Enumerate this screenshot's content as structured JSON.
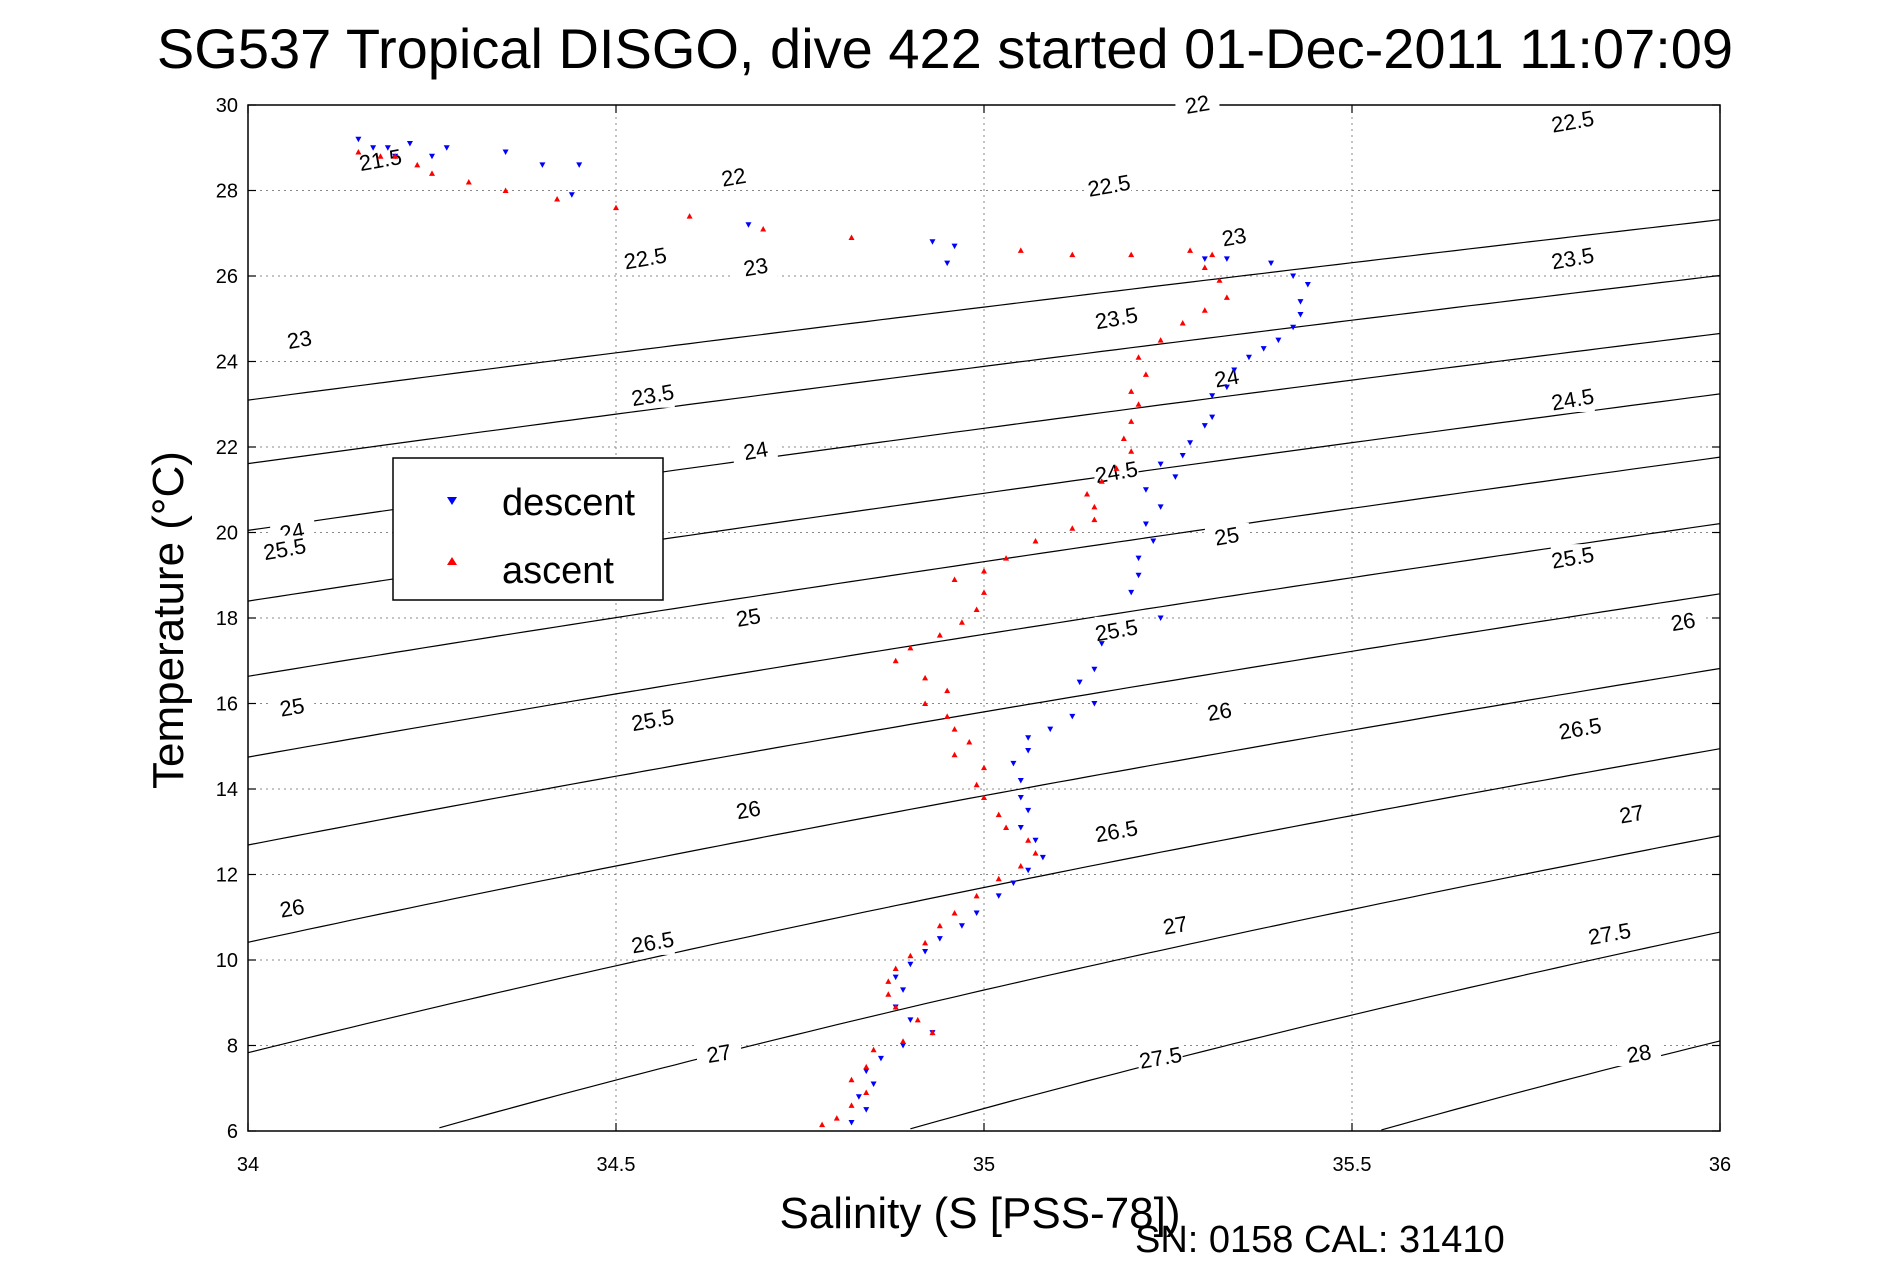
{
  "chart_data": {
    "type": "scatter",
    "title": "SG537 Tropical DISGO, dive 422 started 01-Dec-2011 11:07:09",
    "xlabel": "Salinity (S [PSS-78])",
    "ylabel": "Temperature (°C)",
    "xlim": [
      34,
      36
    ],
    "ylim": [
      6,
      30
    ],
    "x_ticks": [
      34,
      34.5,
      35,
      35.5,
      36
    ],
    "x_tick_labels": [
      "34",
      "34.5",
      "35",
      "35.5",
      "36"
    ],
    "y_ticks": [
      6,
      8,
      10,
      12,
      14,
      16,
      18,
      20,
      22,
      24,
      26,
      28,
      30
    ],
    "y_tick_labels": [
      "6",
      "8",
      "10",
      "12",
      "14",
      "16",
      "18",
      "20",
      "22",
      "24",
      "26",
      "28",
      "30"
    ],
    "grid": "dotted",
    "legend_position": "upper-left",
    "density_contours": [
      21.5,
      22,
      22.5,
      23,
      23.5,
      24,
      24.5,
      25,
      25.5,
      26,
      26.5,
      27,
      27.5,
      28
    ],
    "contour_labels": [
      {
        "text": "21.5",
        "x": 34.18,
        "y": 28.7
      },
      {
        "text": "22",
        "x": 34.66,
        "y": 28.3
      },
      {
        "text": "22",
        "x": 35.29,
        "y": 30.0
      },
      {
        "text": "22.5",
        "x": 34.54,
        "y": 26.4
      },
      {
        "text": "22.5",
        "x": 35.17,
        "y": 28.1
      },
      {
        "text": "22.5",
        "x": 35.8,
        "y": 29.6
      },
      {
        "text": "23",
        "x": 34.07,
        "y": 24.5
      },
      {
        "text": "23",
        "x": 34.69,
        "y": 26.2
      },
      {
        "text": "23",
        "x": 35.34,
        "y": 26.9
      },
      {
        "text": "23.5",
        "x": 34.55,
        "y": 23.2
      },
      {
        "text": "23.5",
        "x": 35.18,
        "y": 25.0
      },
      {
        "text": "23.5",
        "x": 35.8,
        "y": 26.4
      },
      {
        "text": "24",
        "x": 34.06,
        "y": 20.0
      },
      {
        "text": "24",
        "x": 34.69,
        "y": 21.9
      },
      {
        "text": "24",
        "x": 35.33,
        "y": 23.6
      },
      {
        "text": "24.5",
        "x": 35.18,
        "y": 21.4
      },
      {
        "text": "24.5",
        "x": 35.8,
        "y": 23.1
      },
      {
        "text": "25",
        "x": 34.68,
        "y": 18.0
      },
      {
        "text": "25",
        "x": 35.33,
        "y": 19.9
      },
      {
        "text": "25",
        "x": 34.06,
        "y": 15.9
      },
      {
        "text": "25.5",
        "x": 34.05,
        "y": 19.6
      },
      {
        "text": "25.5",
        "x": 34.55,
        "y": 15.6
      },
      {
        "text": "25.5",
        "x": 35.18,
        "y": 17.7
      },
      {
        "text": "25.5",
        "x": 35.8,
        "y": 19.4
      },
      {
        "text": "26",
        "x": 34.06,
        "y": 11.2
      },
      {
        "text": "26",
        "x": 34.68,
        "y": 13.5
      },
      {
        "text": "26",
        "x": 35.32,
        "y": 15.8
      },
      {
        "text": "26",
        "x": 35.95,
        "y": 17.9
      },
      {
        "text": "26.5",
        "x": 34.55,
        "y": 10.4
      },
      {
        "text": "26.5",
        "x": 35.18,
        "y": 13.0
      },
      {
        "text": "26.5",
        "x": 35.81,
        "y": 15.4
      },
      {
        "text": "27",
        "x": 34.64,
        "y": 7.8
      },
      {
        "text": "27",
        "x": 35.26,
        "y": 10.8
      },
      {
        "text": "27",
        "x": 35.88,
        "y": 13.4
      },
      {
        "text": "27.5",
        "x": 35.24,
        "y": 7.7
      },
      {
        "text": "27.5",
        "x": 35.85,
        "y": 10.6
      },
      {
        "text": "28",
        "x": 35.89,
        "y": 7.8
      }
    ],
    "series": [
      {
        "name": "descent",
        "color": "#0000ff",
        "marker": "triangle-down",
        "points": [
          [
            34.15,
            29.2
          ],
          [
            34.17,
            29.0
          ],
          [
            34.19,
            29.0
          ],
          [
            34.2,
            28.8
          ],
          [
            34.22,
            29.1
          ],
          [
            34.25,
            28.8
          ],
          [
            34.27,
            29.0
          ],
          [
            34.35,
            28.9
          ],
          [
            34.4,
            28.6
          ],
          [
            34.44,
            27.9
          ],
          [
            34.45,
            28.6
          ],
          [
            34.68,
            27.2
          ],
          [
            34.93,
            26.8
          ],
          [
            34.95,
            26.3
          ],
          [
            34.96,
            26.7
          ],
          [
            35.3,
            26.4
          ],
          [
            35.33,
            26.4
          ],
          [
            35.39,
            26.3
          ],
          [
            35.42,
            26.0
          ],
          [
            35.44,
            25.8
          ],
          [
            35.43,
            25.4
          ],
          [
            35.43,
            25.1
          ],
          [
            35.42,
            24.8
          ],
          [
            35.4,
            24.5
          ],
          [
            35.38,
            24.3
          ],
          [
            35.36,
            24.1
          ],
          [
            35.34,
            23.8
          ],
          [
            35.33,
            23.4
          ],
          [
            35.31,
            23.2
          ],
          [
            35.31,
            22.7
          ],
          [
            35.3,
            22.5
          ],
          [
            35.28,
            22.1
          ],
          [
            35.27,
            21.8
          ],
          [
            35.24,
            21.6
          ],
          [
            35.26,
            21.3
          ],
          [
            35.22,
            21.0
          ],
          [
            35.24,
            20.6
          ],
          [
            35.22,
            20.2
          ],
          [
            35.23,
            19.8
          ],
          [
            35.21,
            19.4
          ],
          [
            35.21,
            19.0
          ],
          [
            35.2,
            18.6
          ],
          [
            35.24,
            18.0
          ],
          [
            35.16,
            17.4
          ],
          [
            35.15,
            16.8
          ],
          [
            35.13,
            16.5
          ],
          [
            35.15,
            16.0
          ],
          [
            35.12,
            15.7
          ],
          [
            35.09,
            15.4
          ],
          [
            35.06,
            15.2
          ],
          [
            35.06,
            14.9
          ],
          [
            35.04,
            14.6
          ],
          [
            35.05,
            14.2
          ],
          [
            35.05,
            13.8
          ],
          [
            35.06,
            13.5
          ],
          [
            35.05,
            13.1
          ],
          [
            35.07,
            12.8
          ],
          [
            35.08,
            12.4
          ],
          [
            35.06,
            12.1
          ],
          [
            35.04,
            11.8
          ],
          [
            35.02,
            11.5
          ],
          [
            34.99,
            11.1
          ],
          [
            34.97,
            10.8
          ],
          [
            34.94,
            10.5
          ],
          [
            34.92,
            10.2
          ],
          [
            34.9,
            9.9
          ],
          [
            34.88,
            9.6
          ],
          [
            34.89,
            9.3
          ],
          [
            34.88,
            8.9
          ],
          [
            34.9,
            8.6
          ],
          [
            34.93,
            8.3
          ],
          [
            34.89,
            8.0
          ],
          [
            34.86,
            7.7
          ],
          [
            34.84,
            7.4
          ],
          [
            34.85,
            7.1
          ],
          [
            34.83,
            6.8
          ],
          [
            34.84,
            6.5
          ],
          [
            34.82,
            6.2
          ]
        ]
      },
      {
        "name": "ascent",
        "color": "#ff0000",
        "marker": "triangle-up",
        "points": [
          [
            34.15,
            28.9
          ],
          [
            34.18,
            28.8
          ],
          [
            34.2,
            28.8
          ],
          [
            34.23,
            28.6
          ],
          [
            34.25,
            28.4
          ],
          [
            34.3,
            28.2
          ],
          [
            34.35,
            28.0
          ],
          [
            34.42,
            27.8
          ],
          [
            34.5,
            27.6
          ],
          [
            34.6,
            27.4
          ],
          [
            34.7,
            27.1
          ],
          [
            34.82,
            26.9
          ],
          [
            35.05,
            26.6
          ],
          [
            35.12,
            26.5
          ],
          [
            35.2,
            26.5
          ],
          [
            35.28,
            26.6
          ],
          [
            35.31,
            26.5
          ],
          [
            35.3,
            26.2
          ],
          [
            35.32,
            25.9
          ],
          [
            35.33,
            25.5
          ],
          [
            35.3,
            25.2
          ],
          [
            35.27,
            24.9
          ],
          [
            35.24,
            24.5
          ],
          [
            35.21,
            24.1
          ],
          [
            35.22,
            23.7
          ],
          [
            35.2,
            23.3
          ],
          [
            35.21,
            23.0
          ],
          [
            35.2,
            22.6
          ],
          [
            35.19,
            22.2
          ],
          [
            35.2,
            21.9
          ],
          [
            35.18,
            21.5
          ],
          [
            35.16,
            21.2
          ],
          [
            35.14,
            20.9
          ],
          [
            35.15,
            20.6
          ],
          [
            35.15,
            20.3
          ],
          [
            35.12,
            20.1
          ],
          [
            35.07,
            19.8
          ],
          [
            35.03,
            19.4
          ],
          [
            35.0,
            19.1
          ],
          [
            34.96,
            18.9
          ],
          [
            35.0,
            18.6
          ],
          [
            34.99,
            18.2
          ],
          [
            34.97,
            17.9
          ],
          [
            34.94,
            17.6
          ],
          [
            34.9,
            17.3
          ],
          [
            34.88,
            17.0
          ],
          [
            34.92,
            16.6
          ],
          [
            34.95,
            16.3
          ],
          [
            34.92,
            16.0
          ],
          [
            34.95,
            15.7
          ],
          [
            34.96,
            15.4
          ],
          [
            34.98,
            15.1
          ],
          [
            34.96,
            14.8
          ],
          [
            35.0,
            14.5
          ],
          [
            34.99,
            14.1
          ],
          [
            35.0,
            13.8
          ],
          [
            35.02,
            13.4
          ],
          [
            35.03,
            13.1
          ],
          [
            35.06,
            12.8
          ],
          [
            35.07,
            12.5
          ],
          [
            35.05,
            12.2
          ],
          [
            35.02,
            11.9
          ],
          [
            34.99,
            11.5
          ],
          [
            34.96,
            11.1
          ],
          [
            34.94,
            10.8
          ],
          [
            34.92,
            10.4
          ],
          [
            34.9,
            10.1
          ],
          [
            34.88,
            9.8
          ],
          [
            34.87,
            9.5
          ],
          [
            34.87,
            9.2
          ],
          [
            34.88,
            8.9
          ],
          [
            34.91,
            8.6
          ],
          [
            34.93,
            8.3
          ],
          [
            34.89,
            8.1
          ],
          [
            34.85,
            7.9
          ],
          [
            34.84,
            7.5
          ],
          [
            34.82,
            7.2
          ],
          [
            34.84,
            6.9
          ],
          [
            34.82,
            6.6
          ],
          [
            34.8,
            6.3
          ],
          [
            34.78,
            6.15
          ]
        ]
      }
    ],
    "legend": [
      {
        "label": "descent",
        "color": "#0000ff"
      },
      {
        "label": "ascent",
        "color": "#ff0000"
      }
    ]
  },
  "footer": {
    "sn_cal": "SN: 0158  CAL: 31410"
  }
}
